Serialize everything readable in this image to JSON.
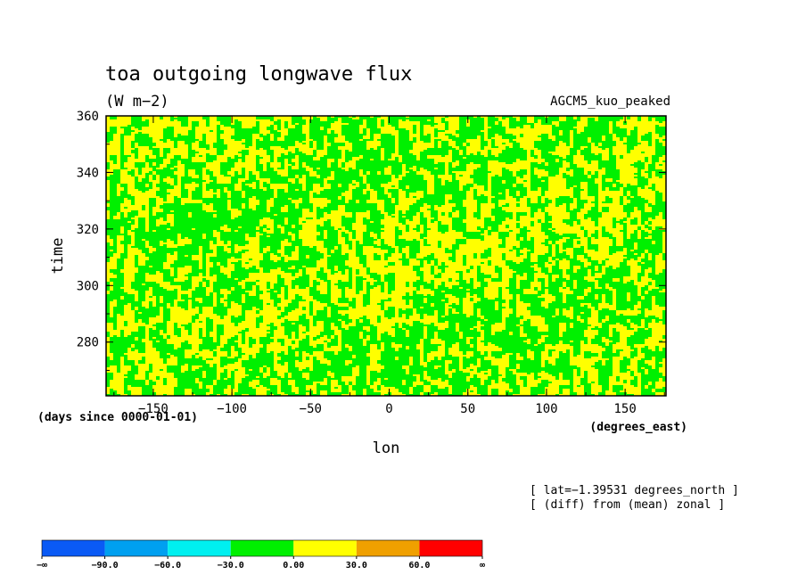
{
  "chart_data": {
    "type": "heatmap",
    "title": "toa outgoing longwave flux",
    "units": "(W m−2)",
    "dataset": "AGCM5_kuo_peaked",
    "xlabel": "lon",
    "xunits": "(degrees_east)",
    "ylabel": "time",
    "yunits": "(days since 0000-01-01)",
    "xlim": [
      -180,
      176
    ],
    "ylim": [
      261,
      360
    ],
    "xticks": [
      -150,
      -100,
      -50,
      0,
      50,
      100,
      150
    ],
    "xtick_labels": [
      "−150",
      "−100",
      "−50",
      "0",
      "50",
      "100",
      "150"
    ],
    "yticks": [
      280,
      300,
      320,
      340,
      360
    ],
    "ytick_labels": [
      "280",
      "300",
      "320",
      "340",
      "360"
    ],
    "notes": [
      "[ lat=−1.39531 degrees_north ]",
      "[ (diff) from (mean) zonal ]"
    ],
    "field_description": "zonal anomaly pattern; only the classes -30..0 (green) and 0..30 (yellow) appear",
    "colorbar": {
      "levels": [
        "−∞",
        "−90.0",
        "−60.0",
        "−30.0",
        "0.00",
        "30.0",
        "60.0",
        "∞"
      ],
      "colors": [
        "#0a5af5",
        "#00a0f0",
        "#00f0f0",
        "#00f000",
        "#ffff00",
        "#f0a000",
        "#ff0000"
      ]
    }
  }
}
